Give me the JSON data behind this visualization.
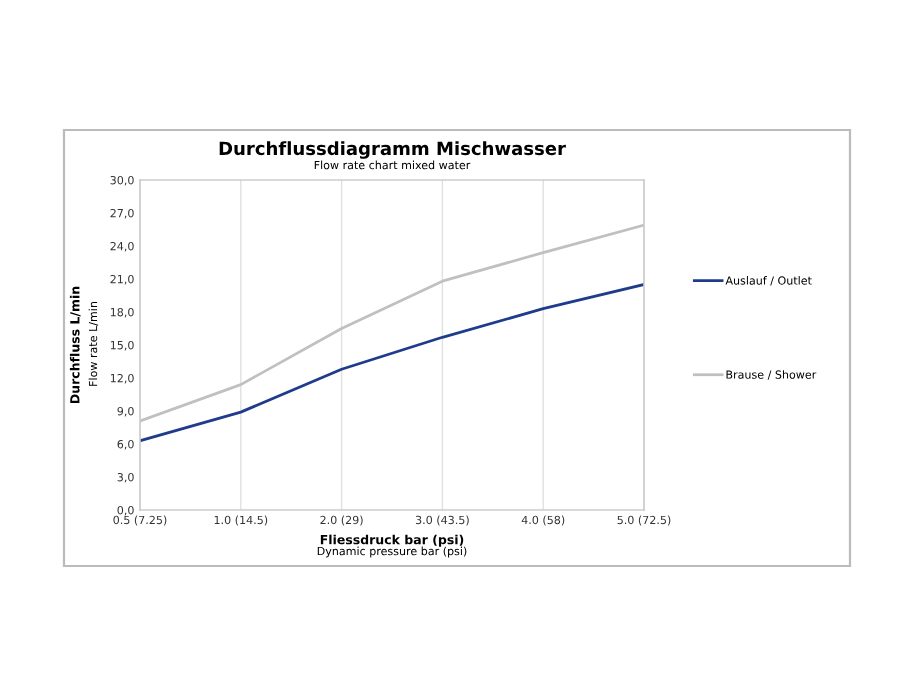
{
  "chart_data": {
    "type": "line",
    "title": "Durchflussdiagramm Mischwasser",
    "subtitle": "Flow rate chart mixed water",
    "xlabel": "Fliessdruck bar (psi)",
    "ylabel": "Durchfluss L/min",
    "annotations": [
      "Dynamic pressure bar (psi)",
      "Flow rate L/min"
    ],
    "categories": [
      "0.5 (7.25)",
      "1.0 (14.5)",
      "2.0 (29)",
      "3.0 (43.5)",
      "4.0 (58)",
      "5.0 (72.5)"
    ],
    "series": [
      {
        "name": "Auslauf / Outlet",
        "color": "#1f3c8c",
        "values": [
          6.3,
          8.9,
          12.8,
          15.7,
          18.3,
          20.5
        ]
      },
      {
        "name": "Brause / Shower",
        "color": "#c0c0c0",
        "values": [
          8.1,
          11.4,
          16.5,
          20.8,
          23.4,
          25.9
        ]
      }
    ],
    "ylim": [
      0,
      30
    ],
    "yticks": [
      {
        "value": 0,
        "label": "0,0"
      },
      {
        "value": 3,
        "label": "3,0"
      },
      {
        "value": 6,
        "label": "6,0"
      },
      {
        "value": 9,
        "label": "9,0"
      },
      {
        "value": 12,
        "label": "12,0"
      },
      {
        "value": 15,
        "label": "15,0"
      },
      {
        "value": 18,
        "label": "18,0"
      },
      {
        "value": 21,
        "label": "21,0"
      },
      {
        "value": 24,
        "label": "24,0"
      },
      {
        "value": 27,
        "label": "27,0"
      },
      {
        "value": 30,
        "label": "30,0"
      }
    ],
    "grid": "x",
    "legend": "right",
    "marker": "none",
    "line_style": "solid"
  }
}
